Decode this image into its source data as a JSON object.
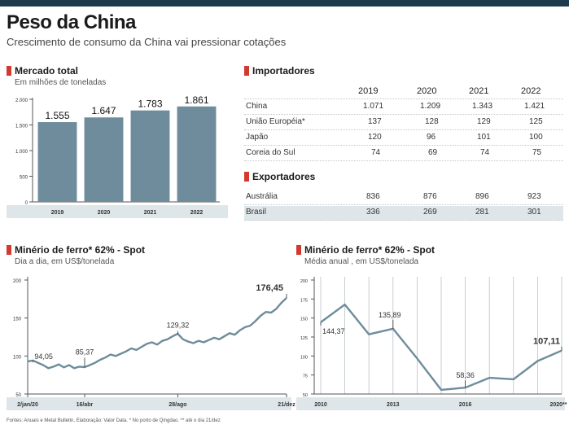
{
  "header": {
    "title": "Peso da China",
    "subtitle": "Crescimento de consumo da China vai pressionar cotações"
  },
  "mercado": {
    "title": "Mercado total",
    "subtitle": "Em milhões de toneladas"
  },
  "importadores": {
    "title": "Importadores",
    "years": [
      "2019",
      "2020",
      "2021",
      "2022"
    ],
    "rows": [
      {
        "name": "China",
        "values": [
          "1.071",
          "1.209",
          "1.343",
          "1.421"
        ]
      },
      {
        "name": "União Européia*",
        "values": [
          "137",
          "128",
          "129",
          "125"
        ]
      },
      {
        "name": "Japão",
        "values": [
          "120",
          "96",
          "101",
          "100"
        ]
      },
      {
        "name": "Coreia do Sul",
        "values": [
          "74",
          "69",
          "74",
          "75"
        ]
      }
    ]
  },
  "exportadores": {
    "title": "Exportadores",
    "rows": [
      {
        "name": "Austrália",
        "values": [
          "836",
          "876",
          "896",
          "923"
        ]
      },
      {
        "name": "Brasil",
        "values": [
          "336",
          "269",
          "281",
          "301"
        ]
      }
    ]
  },
  "spot_daily": {
    "title": "Minério de ferro* 62% - Spot",
    "subtitle": "Dia a dia, em US$/tonelada"
  },
  "spot_annual": {
    "title": "Minério de ferro* 62% - Spot",
    "subtitle": "Média anual , em US$/tonelada"
  },
  "source": "Fontes: Anuais e Metal Bulletin, Elaboração: Valor Data. * No porto de Qingdao. ** até o dia 21/dez",
  "colors": {
    "bar": "#6e8c9c",
    "line": "#6e8c9c",
    "accent": "#d33a2f",
    "header_bar": "#1e3a4c",
    "shade": "#dfe6ea"
  },
  "chart_data": [
    {
      "type": "bar",
      "title": "Mercado total",
      "subtitle": "Em milhões de toneladas",
      "categories": [
        "2019",
        "2020",
        "2021",
        "2022"
      ],
      "values": [
        1555,
        1647,
        1783,
        1861
      ],
      "value_labels": [
        "1.555",
        "1.647",
        "1.783",
        "1.861"
      ],
      "ylim": [
        0,
        2000
      ],
      "yticks": [
        0,
        500,
        1000,
        1500,
        2000
      ],
      "ytick_labels": [
        "0",
        "500",
        "1.000",
        "1.500",
        "2.000"
      ]
    },
    {
      "type": "line",
      "title": "Minério de ferro* 62% - Spot",
      "subtitle": "Dia a dia, em US$/tonelada",
      "ylim": [
        50,
        200
      ],
      "yticks": [
        50,
        100,
        150,
        200
      ],
      "ytick_labels": [
        "50",
        "100",
        "150",
        "200"
      ],
      "xtick_labels": [
        "2/jan/20",
        "16/abr",
        "28/ago",
        "21/dez"
      ],
      "annotations": [
        "94,05",
        "85,37",
        "129,32",
        "176,45"
      ],
      "series": [
        {
          "points": [
            [
              0,
              93
            ],
            [
              2,
              94.05
            ],
            [
              4,
              91
            ],
            [
              6,
              88
            ],
            [
              8,
              84
            ],
            [
              10,
              86
            ],
            [
              12,
              89
            ],
            [
              14,
              85
            ],
            [
              16,
              88
            ],
            [
              18,
              84
            ],
            [
              20,
              86
            ],
            [
              22,
              85.37
            ],
            [
              24,
              88
            ],
            [
              26,
              91
            ],
            [
              28,
              95
            ],
            [
              30,
              98
            ],
            [
              32,
              102
            ],
            [
              34,
              100
            ],
            [
              36,
              103
            ],
            [
              38,
              106
            ],
            [
              40,
              110
            ],
            [
              42,
              108
            ],
            [
              44,
              112
            ],
            [
              46,
              116
            ],
            [
              48,
              118
            ],
            [
              50,
              115
            ],
            [
              52,
              120
            ],
            [
              54,
              122
            ],
            [
              56,
              126
            ],
            [
              58,
              129.32
            ],
            [
              60,
              122
            ],
            [
              62,
              119
            ],
            [
              64,
              117
            ],
            [
              66,
              120
            ],
            [
              68,
              118
            ],
            [
              70,
              121
            ],
            [
              72,
              124
            ],
            [
              74,
              122
            ],
            [
              76,
              126
            ],
            [
              78,
              130
            ],
            [
              80,
              128
            ],
            [
              82,
              134
            ],
            [
              84,
              138
            ],
            [
              86,
              140
            ],
            [
              88,
              146
            ],
            [
              90,
              153
            ],
            [
              92,
              158
            ],
            [
              94,
              157
            ],
            [
              96,
              162
            ],
            [
              98,
              170
            ],
            [
              100,
              176.45
            ]
          ]
        }
      ]
    },
    {
      "type": "line",
      "title": "Minério de ferro* 62% - Spot",
      "subtitle": "Média anual , em US$/tonelada",
      "ylim": [
        50,
        200
      ],
      "yticks": [
        50,
        75,
        100,
        125,
        150,
        175,
        200
      ],
      "ytick_labels": [
        "50",
        "75",
        "100",
        "125",
        "150",
        "175",
        "200"
      ],
      "xtick_labels": [
        "2010",
        "2013",
        "2016",
        "2020**"
      ],
      "annotations": [
        "144,37",
        "135,89",
        "58,36",
        "107,11"
      ],
      "series": [
        {
          "x": [
            2010,
            2011,
            2012,
            2013,
            2014,
            2015,
            2016,
            2017,
            2018,
            2019,
            2020
          ],
          "values": [
            144.37,
            167.8,
            128.5,
            135.89,
            96.8,
            55.5,
            58.36,
            71.3,
            69.4,
            93.4,
            107.11
          ]
        }
      ]
    }
  ]
}
